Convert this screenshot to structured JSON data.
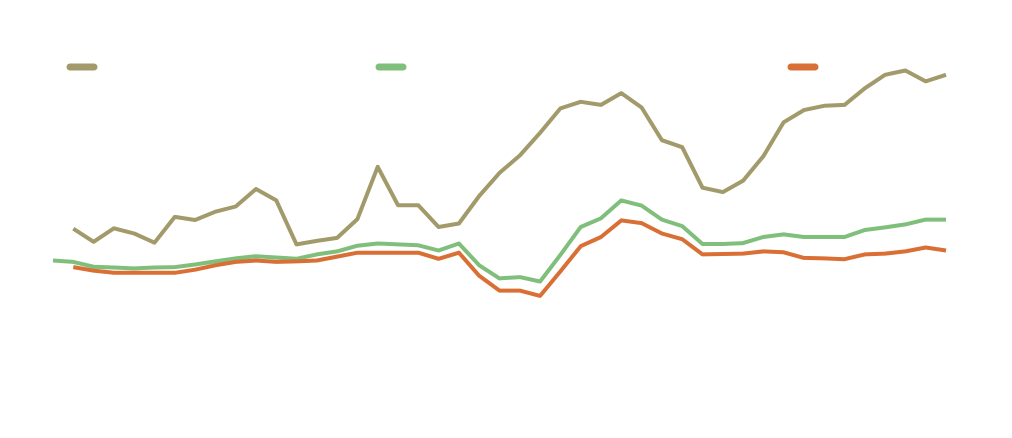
{
  "chart_data": {
    "type": "line",
    "x": [
      1,
      2,
      3,
      4,
      5,
      6,
      7,
      8,
      9,
      10,
      11,
      12,
      13,
      14,
      15,
      16,
      17,
      18,
      19,
      20,
      21,
      22,
      23,
      24,
      25,
      26,
      27,
      28,
      29,
      30,
      31,
      32,
      33,
      34,
      35,
      36,
      37,
      38,
      39,
      40,
      41,
      42,
      43,
      44,
      45
    ],
    "ylim": [
      0,
      100
    ],
    "grid": false,
    "legend": "top",
    "series": [
      {
        "color": "#a29a6a",
        "values": [
          null,
          48.0,
          45.0,
          48.1,
          46.9,
          44.8,
          50.7,
          50.0,
          51.9,
          53.1,
          57.1,
          54.5,
          44.4,
          45.2,
          45.9,
          50.2,
          62.2,
          53.4,
          53.4,
          48.4,
          49.2,
          55.5,
          60.8,
          64.8,
          70.0,
          75.6,
          77.1,
          76.4,
          79.1,
          75.8,
          68.3,
          66.7,
          57.4,
          56.4,
          59.0,
          64.6,
          72.4,
          75.2,
          76.2,
          76.4,
          80.2,
          83.3,
          84.3,
          81.8,
          83.3
        ]
      },
      {
        "color": "#7fbf7b",
        "values": [
          40.7,
          40.4,
          39.3,
          39.1,
          38.9,
          39.1,
          39.2,
          39.8,
          40.5,
          41.2,
          41.7,
          41.4,
          41.1,
          42.1,
          42.8,
          44.1,
          44.6,
          44.4,
          44.2,
          43.0,
          44.6,
          39.6,
          36.6,
          36.9,
          35.9,
          42.0,
          48.4,
          50.4,
          54.5,
          53.3,
          50.1,
          48.6,
          44.5,
          44.5,
          44.7,
          46.1,
          46.7,
          46.1,
          46.1,
          46.1,
          47.7,
          48.3,
          49.0,
          50.1,
          50.1
        ]
      },
      {
        "color": "#d96f34",
        "values": [
          null,
          39.2,
          38.4,
          37.9,
          37.9,
          37.9,
          37.9,
          38.6,
          39.6,
          40.4,
          40.7,
          40.4,
          40.5,
          40.7,
          41.6,
          42.5,
          42.5,
          42.5,
          42.5,
          41.1,
          42.5,
          37.2,
          33.8,
          33.8,
          32.6,
          38.2,
          44.0,
          46.1,
          49.9,
          49.3,
          46.9,
          45.6,
          42.1,
          42.2,
          42.3,
          42.8,
          42.6,
          41.3,
          41.2,
          41.0,
          42.1,
          42.3,
          42.8,
          43.7,
          43.0
        ]
      }
    ]
  }
}
